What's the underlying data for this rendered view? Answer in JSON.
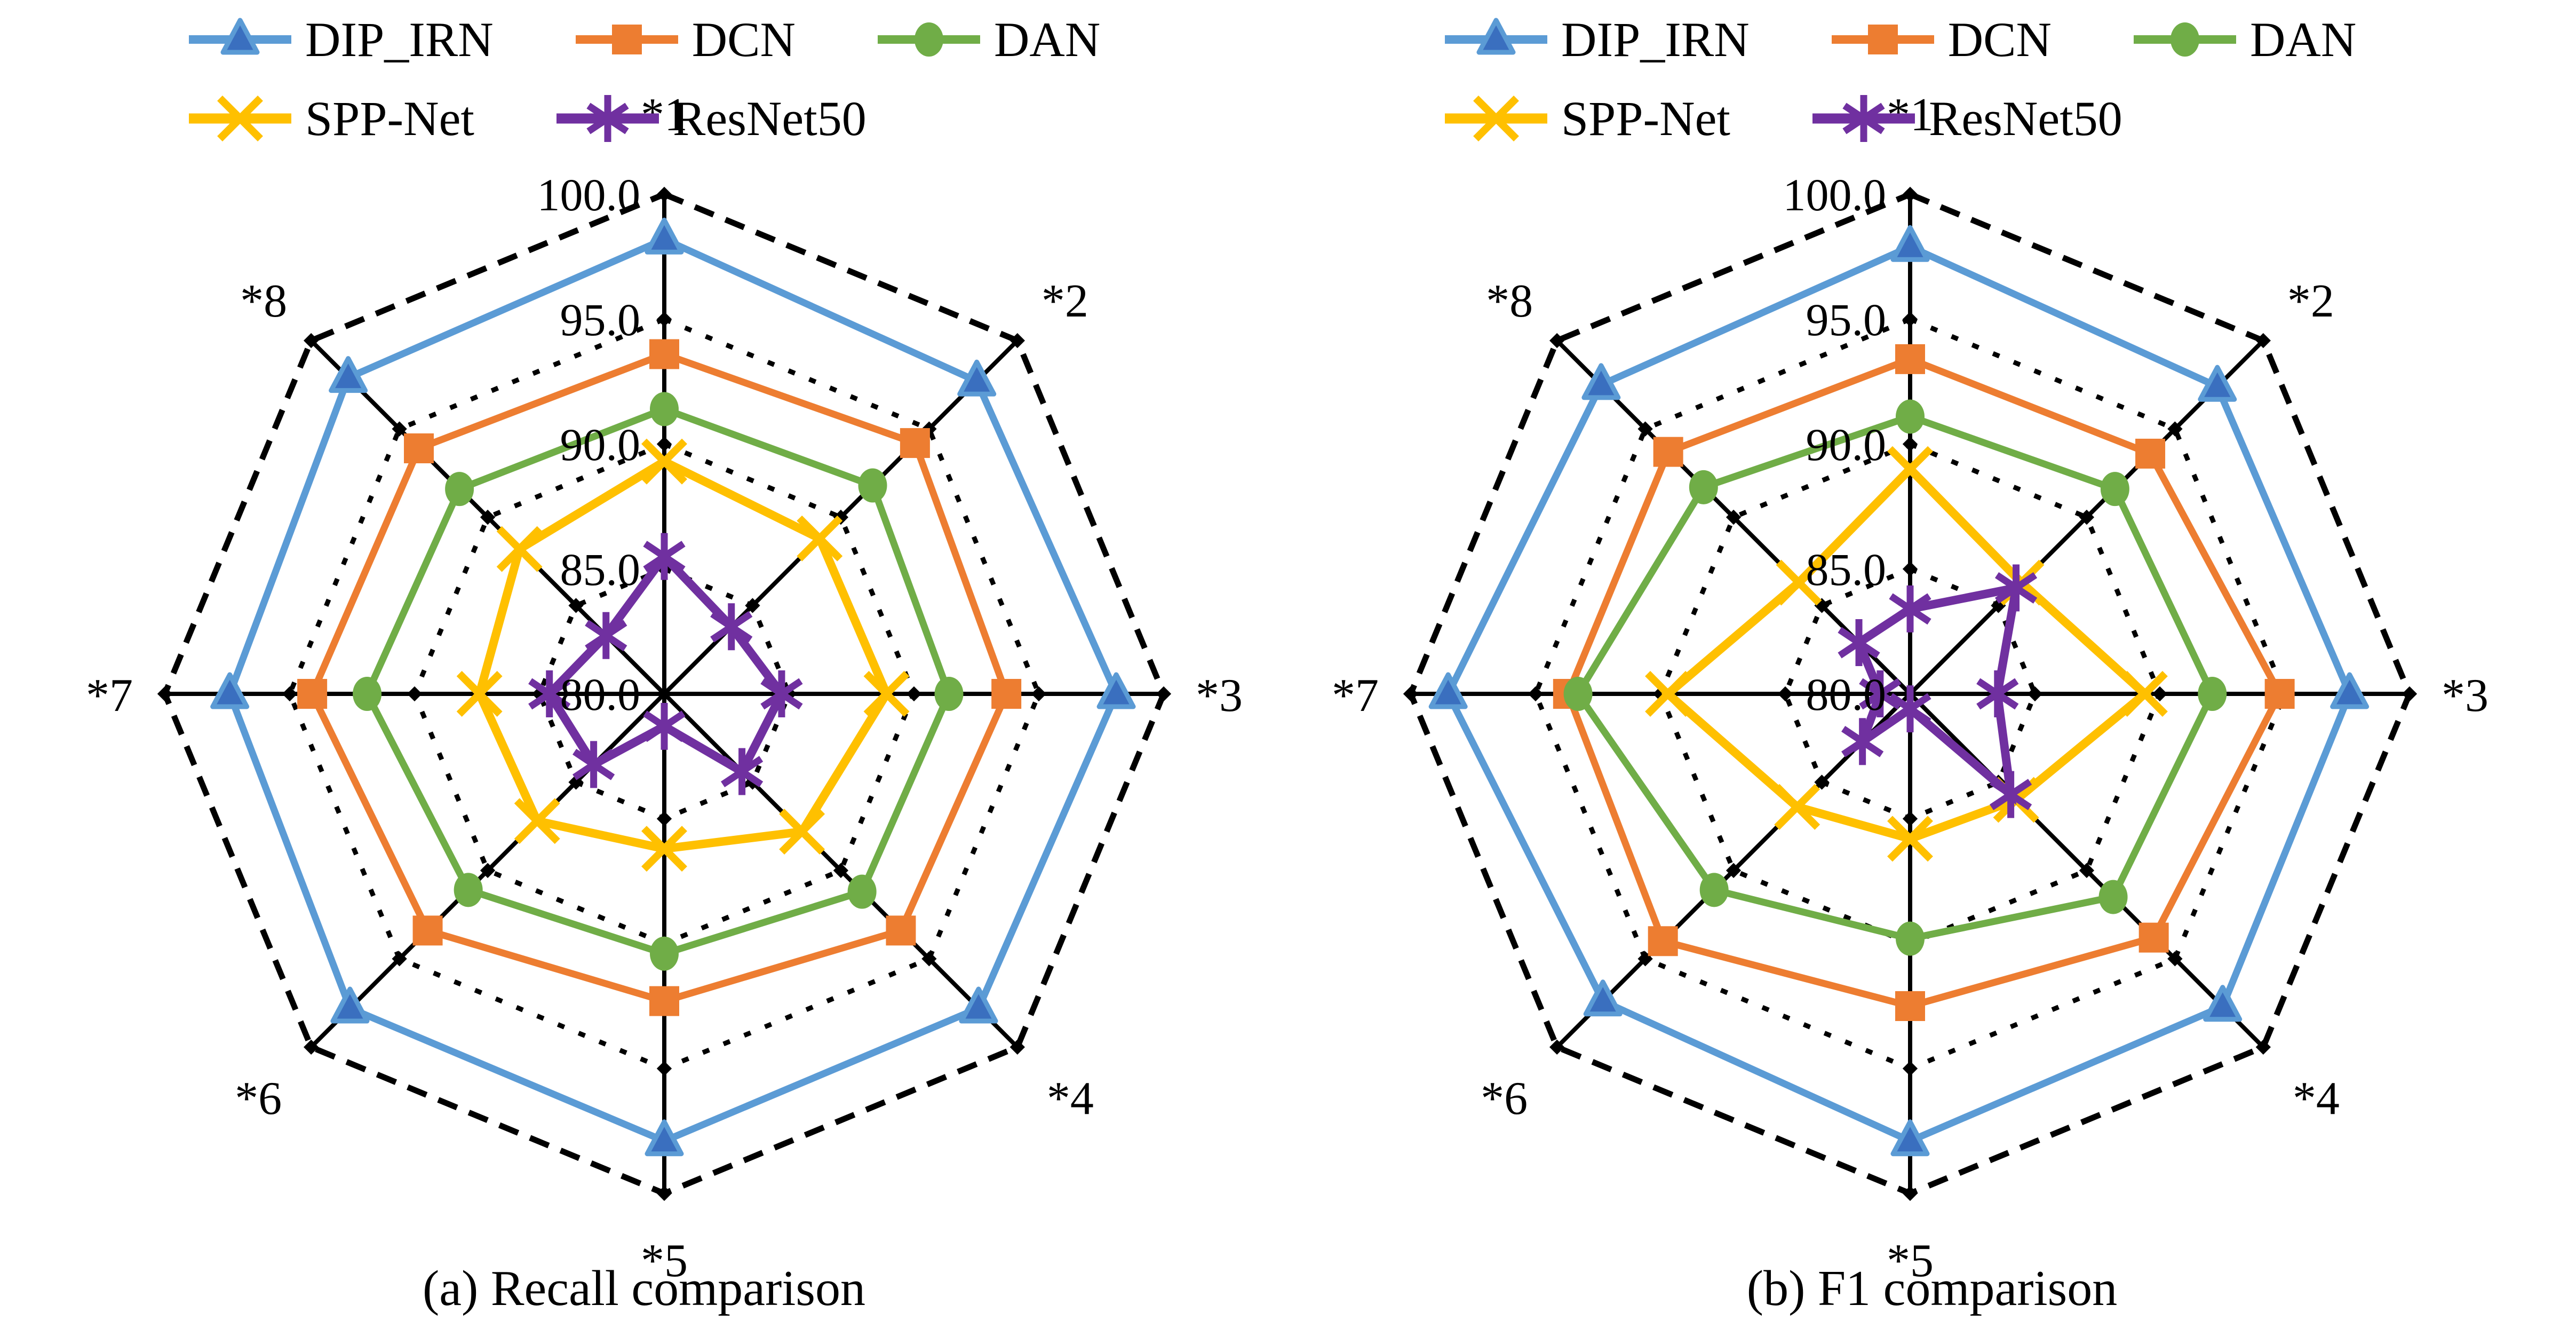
{
  "figure": {
    "background": "#ffffff",
    "grid_color": "#000000",
    "axis_color": "#000000",
    "text_color": "#000000"
  },
  "chart_data": [
    {
      "type": "radar",
      "title": "(a) Recall comparison",
      "categories": [
        "*1",
        "*2",
        "*3",
        "*4",
        "*5",
        "*6",
        "*7",
        "*8"
      ],
      "r_axis": {
        "min": 80,
        "max": 100,
        "step": 5,
        "tick_labels": [
          "80.0",
          "85.0",
          "90.0",
          "95.0",
          "100.0"
        ],
        "grid": "dotted-octagon"
      },
      "legend_position": "top-left",
      "series": [
        {
          "name": "DIP_IRN",
          "color": "#5B9BD5",
          "marker": "triangle",
          "marker_fill": "#3A6FBF",
          "line_width": 13,
          "values": [
            98.2,
            97.7,
            98.1,
            97.8,
            97.9,
            97.8,
            97.4,
            97.9
          ]
        },
        {
          "name": "DCN",
          "color": "#ED7D31",
          "marker": "square",
          "marker_fill": "#ED7D31",
          "line_width": 13,
          "values": [
            93.6,
            94.2,
            93.7,
            93.4,
            92.3,
            93.4,
            94.1,
            93.9
          ]
        },
        {
          "name": "DAN",
          "color": "#70AD47",
          "marker": "circle",
          "marker_fill": "#70AD47",
          "line_width": 13,
          "values": [
            91.4,
            91.8,
            91.4,
            91.2,
            90.4,
            91.1,
            91.9,
            91.6
          ]
        },
        {
          "name": "SPP-Net",
          "color": "#FFC000",
          "marker": "x",
          "marker_fill": "#FFC000",
          "line_width": 16,
          "values": [
            89.3,
            88.8,
            88.9,
            87.8,
            86.2,
            87.2,
            87.4,
            88.2
          ]
        },
        {
          "name": "ResNet50",
          "color": "#7030A0",
          "marker": "asterisk",
          "marker_fill": "#7030A0",
          "line_width": 16,
          "values": [
            85.5,
            83.8,
            84.7,
            84.4,
            81.3,
            84.0,
            84.6,
            83.3
          ]
        }
      ]
    },
    {
      "type": "radar",
      "title": "(b) F1 comparison",
      "categories": [
        "*1",
        "*2",
        "*3",
        "*4",
        "*5",
        "*6",
        "*7",
        "*8"
      ],
      "r_axis": {
        "min": 80,
        "max": 100,
        "step": 5,
        "tick_labels": [
          "80.0",
          "85.0",
          "90.0",
          "95.0",
          "100.0"
        ],
        "grid": "dotted-octagon"
      },
      "legend_position": "top-left",
      "series": [
        {
          "name": "DIP_IRN",
          "color": "#5B9BD5",
          "marker": "triangle",
          "marker_fill": "#3A6FBF",
          "line_width": 13,
          "values": [
            97.9,
            97.4,
            97.6,
            97.7,
            97.9,
            97.4,
            98.5,
            97.5
          ]
        },
        {
          "name": "DCN",
          "color": "#ED7D31",
          "marker": "square",
          "marker_fill": "#ED7D31",
          "line_width": 13,
          "values": [
            93.4,
            93.6,
            94.8,
            93.8,
            92.5,
            94.0,
            93.7,
            93.7
          ]
        },
        {
          "name": "DAN",
          "color": "#70AD47",
          "marker": "circle",
          "marker_fill": "#70AD47",
          "line_width": 13,
          "values": [
            91.1,
            91.6,
            92.1,
            91.5,
            89.8,
            91.1,
            93.3,
            91.7
          ]
        },
        {
          "name": "SPP-Net",
          "color": "#FFC000",
          "marker": "x",
          "marker_fill": "#FFC000",
          "line_width": 16,
          "values": [
            89.0,
            86.3,
            89.4,
            86.0,
            85.8,
            86.4,
            89.7,
            86.3
          ]
        },
        {
          "name": "ResNet50",
          "color": "#7030A0",
          "marker": "asterisk",
          "marker_fill": "#7030A0",
          "line_width": 16,
          "values": [
            83.4,
            86.0,
            83.5,
            85.7,
            80.6,
            82.7,
            81.2,
            82.9
          ]
        }
      ]
    }
  ]
}
